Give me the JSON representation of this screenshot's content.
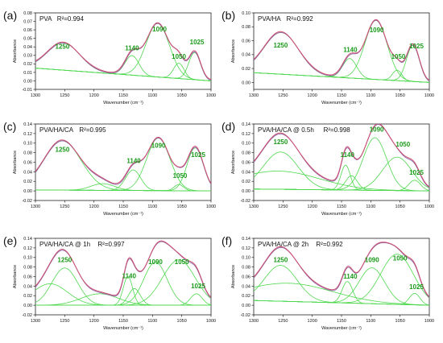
{
  "chart_data": [
    {
      "type": "line",
      "letter": "(a)",
      "title": "PVA",
      "r2": "R²=0.994",
      "xlabel": "Wavenumber (cm⁻¹)",
      "ylabel": "Absorbance",
      "xlim": [
        1300,
        1000
      ],
      "ylim": [
        -0.01,
        0.08
      ],
      "xticks": [
        1300,
        1250,
        1200,
        1150,
        1100,
        1050,
        1000
      ],
      "yticks": [
        "-0.01",
        "0.00",
        "0.01",
        "0.02",
        "0.03",
        "0.04",
        "0.05",
        "0.06",
        "0.07",
        "0.08"
      ],
      "baseline": {
        "start": 0.015,
        "end": 0.0
      },
      "peaks": [
        {
          "label": "1250",
          "center": 1252,
          "height": 0.032,
          "width": 28,
          "label_x": 1254,
          "label_y": 0.038
        },
        {
          "label": "1140",
          "center": 1135,
          "height": 0.023,
          "width": 12,
          "label_x": 1135,
          "label_y": 0.036
        },
        {
          "label": "1090",
          "center": 1091,
          "height": 0.063,
          "width": 20,
          "label_x": 1088,
          "label_y": 0.058
        },
        {
          "label": "1050",
          "center": 1055,
          "height": 0.018,
          "width": 9,
          "label_x": 1055,
          "label_y": 0.026
        },
        {
          "label": "1025",
          "center": 1028,
          "height": 0.032,
          "width": 10,
          "label_x": 1024,
          "label_y": 0.043
        }
      ]
    },
    {
      "type": "line",
      "letter": "(b)",
      "title": "PVA/HA",
      "r2": "R²=0.992",
      "xlabel": "Wavenumber (cm⁻¹)",
      "ylabel": "Absorbance",
      "xlim": [
        1300,
        1000
      ],
      "ylim": [
        -0.01,
        0.1
      ],
      "xticks": [
        1300,
        1250,
        1200,
        1150,
        1100,
        1050,
        1000
      ],
      "yticks": [
        "0.00",
        "0.02",
        "0.04",
        "0.06",
        "0.08",
        "0.10"
      ],
      "baseline": {
        "start": 0.014,
        "end": 0.0
      },
      "peaks": [
        {
          "label": "1250",
          "center": 1253,
          "height": 0.06,
          "width": 30,
          "label_x": 1254,
          "label_y": 0.05
        },
        {
          "label": "1140",
          "center": 1136,
          "height": 0.028,
          "width": 12,
          "label_x": 1135,
          "label_y": 0.044
        },
        {
          "label": "1090",
          "center": 1091,
          "height": 0.085,
          "width": 19,
          "label_x": 1090,
          "label_y": 0.072
        },
        {
          "label": "1050",
          "center": 1055,
          "height": 0.015,
          "width": 8,
          "label_x": 1053,
          "label_y": 0.034
        },
        {
          "label": "1025",
          "center": 1028,
          "height": 0.052,
          "width": 11,
          "label_x": 1022,
          "label_y": 0.049
        }
      ]
    },
    {
      "type": "line",
      "letter": "(c)",
      "title": "PVA/HA/CA",
      "r2": "R²=0.995",
      "xlabel": "Wavenumber (cm⁻¹)",
      "ylabel": "Absorbance",
      "xlim": [
        1300,
        1000
      ],
      "ylim": [
        -0.02,
        0.14
      ],
      "xticks": [
        1300,
        1250,
        1200,
        1150,
        1100,
        1050,
        1000
      ],
      "yticks": [
        "-0.02",
        "0.00",
        "0.02",
        "0.04",
        "0.06",
        "0.08",
        "0.10",
        "0.12",
        "0.14"
      ],
      "baseline": {
        "start": 0.002,
        "end": 0.0
      },
      "peaks": [
        {
          "label": "1250",
          "center": 1254,
          "height": 0.103,
          "width": 32,
          "label_x": 1254,
          "label_y": 0.082
        },
        {
          "label": "",
          "center": 1185,
          "height": 0.014,
          "width": 20,
          "label_x": 0,
          "label_y": 0
        },
        {
          "label": "1140",
          "center": 1133,
          "height": 0.043,
          "width": 13,
          "label_x": 1132,
          "label_y": 0.058
        },
        {
          "label": "1090",
          "center": 1090,
          "height": 0.11,
          "width": 20,
          "label_x": 1090,
          "label_y": 0.09
        },
        {
          "label": "1050",
          "center": 1055,
          "height": 0.013,
          "width": 8,
          "label_x": 1053,
          "label_y": 0.027
        },
        {
          "label": "1025",
          "center": 1027,
          "height": 0.09,
          "width": 14,
          "label_x": 1022,
          "label_y": 0.071
        }
      ]
    },
    {
      "type": "line",
      "letter": "(d)",
      "title": "PVA/HA/CA @ 0.5h",
      "r2": "R²=0.998",
      "xlabel": "Wavenumber (cm⁻¹)",
      "ylabel": "Absorbance",
      "xlim": [
        1300,
        1000
      ],
      "ylim": [
        -0.02,
        0.14
      ],
      "xticks": [
        1300,
        1250,
        1200,
        1150,
        1100,
        1050,
        1000
      ],
      "yticks": [
        "-0.02",
        "0.00",
        "0.02",
        "0.04",
        "0.06",
        "0.08",
        "0.10",
        "0.12",
        "0.14"
      ],
      "baseline": {
        "start": 0.004,
        "end": 0.0
      },
      "peaks": [
        {
          "label": "1250",
          "center": 1254,
          "height": 0.078,
          "width": 30,
          "label_x": 1254,
          "label_y": 0.098
        },
        {
          "label": "",
          "center": 1258,
          "height": 0.038,
          "width": 70,
          "label_x": 0,
          "label_y": 0
        },
        {
          "label": "1140",
          "center": 1143,
          "height": 0.052,
          "width": 8,
          "label_x": 1140,
          "label_y": 0.071
        },
        {
          "label": "",
          "center": 1133,
          "height": 0.03,
          "width": 10,
          "label_x": 0,
          "label_y": 0
        },
        {
          "label": "1090",
          "center": 1093,
          "height": 0.11,
          "width": 20,
          "label_x": 1090,
          "label_y": 0.124
        },
        {
          "label": "1050",
          "center": 1055,
          "height": 0.07,
          "width": 25,
          "label_x": 1045,
          "label_y": 0.093
        },
        {
          "label": "1025",
          "center": 1025,
          "height": 0.022,
          "width": 10,
          "label_x": 1022,
          "label_y": 0.034
        }
      ]
    },
    {
      "type": "line",
      "letter": "(e)",
      "title": "PVA/HA/CA @ 1h",
      "r2": "R²=0.997",
      "xlabel": "Wavenumber (cm⁻¹)",
      "ylabel": "Absorbance",
      "xlim": [
        1300,
        1000
      ],
      "ylim": [
        -0.02,
        0.14
      ],
      "xticks": [
        1300,
        1250,
        1200,
        1150,
        1100,
        1050,
        1000
      ],
      "yticks": [
        "-0.02",
        "0.00",
        "0.02",
        "0.04",
        "0.06",
        "0.08",
        "0.10",
        "0.12",
        "0.14"
      ],
      "baseline": {
        "start": 0.0,
        "end": 0.0
      },
      "peaks": [
        {
          "label": "1250",
          "center": 1250,
          "height": 0.078,
          "width": 22,
          "label_x": 1250,
          "label_y": 0.09
        },
        {
          "label": "",
          "center": 1275,
          "height": 0.045,
          "width": 30,
          "label_x": 0,
          "label_y": 0
        },
        {
          "label": "",
          "center": 1190,
          "height": 0.024,
          "width": 32,
          "label_x": 0,
          "label_y": 0
        },
        {
          "label": "1140",
          "center": 1142,
          "height": 0.06,
          "width": 8,
          "label_x": 1140,
          "label_y": 0.057
        },
        {
          "label": "",
          "center": 1131,
          "height": 0.035,
          "width": 10,
          "label_x": 0,
          "label_y": 0
        },
        {
          "label": "1090",
          "center": 1095,
          "height": 0.09,
          "width": 20,
          "label_x": 1095,
          "label_y": 0.086
        },
        {
          "label": "1050",
          "center": 1055,
          "height": 0.095,
          "width": 28,
          "label_x": 1050,
          "label_y": 0.086
        },
        {
          "label": "1025",
          "center": 1025,
          "height": 0.024,
          "width": 10,
          "label_x": 1022,
          "label_y": 0.036
        }
      ]
    },
    {
      "type": "line",
      "letter": "(f)",
      "title": "PVA/HA/CA @ 2h",
      "r2": "R²=0.992",
      "xlabel": "Wavenumber (cm⁻¹)",
      "ylabel": "Absorbance",
      "xlim": [
        1300,
        1000
      ],
      "ylim": [
        -0.02,
        0.14
      ],
      "xticks": [
        1300,
        1250,
        1200,
        1150,
        1100,
        1050,
        1000
      ],
      "yticks": [
        "-0.02",
        "0.00",
        "0.02",
        "0.04",
        "0.06",
        "0.08",
        "0.10",
        "0.12",
        "0.14"
      ],
      "baseline": {
        "start": 0.01,
        "end": 0.0
      },
      "peaks": [
        {
          "label": "1250",
          "center": 1254,
          "height": 0.075,
          "width": 28,
          "label_x": 1254,
          "label_y": 0.09
        },
        {
          "label": "",
          "center": 1240,
          "height": 0.038,
          "width": 75,
          "label_x": 0,
          "label_y": 0
        },
        {
          "label": "1140",
          "center": 1140,
          "height": 0.045,
          "width": 9,
          "label_x": 1135,
          "label_y": 0.056
        },
        {
          "label": "1090",
          "center": 1098,
          "height": 0.075,
          "width": 22,
          "label_x": 1098,
          "label_y": 0.09
        },
        {
          "label": "1050",
          "center": 1055,
          "height": 0.105,
          "width": 28,
          "label_x": 1050,
          "label_y": 0.094
        },
        {
          "label": "1025",
          "center": 1025,
          "height": 0.024,
          "width": 9,
          "label_x": 1022,
          "label_y": 0.034
        }
      ]
    }
  ],
  "colors": {
    "experimental": "#cf4d6f",
    "fit_envelope": "#8a6aa8",
    "component": "#4ed84e",
    "peak_label": "#1a9a1a",
    "axis": "#222222",
    "text": "#111111"
  }
}
